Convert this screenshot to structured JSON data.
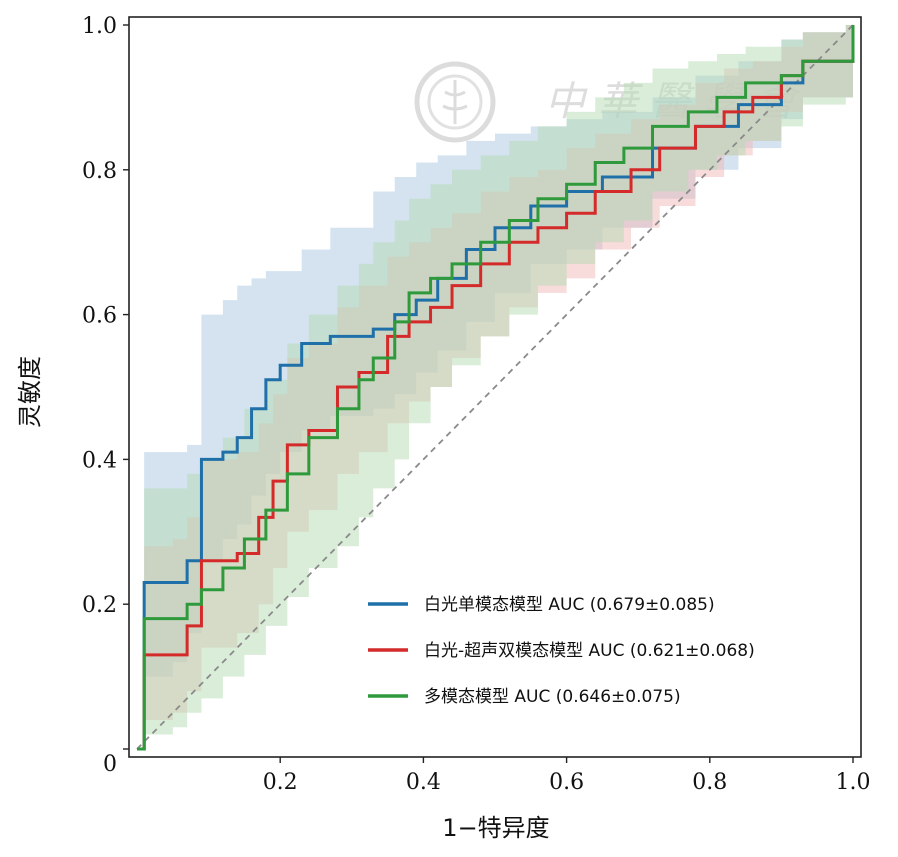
{
  "chart_data": {
    "type": "line",
    "xlabel": "1−特异度",
    "ylabel": "灵敏度",
    "xlim": [
      0,
      1
    ],
    "ylim": [
      0,
      1
    ],
    "x_ticks": [
      {
        "value": 0.2,
        "label": "0.2"
      },
      {
        "value": 0.4,
        "label": "0.4"
      },
      {
        "value": 0.6,
        "label": "0.6"
      },
      {
        "value": 0.8,
        "label": "0.8"
      },
      {
        "value": 1.0,
        "label": "1.0"
      }
    ],
    "y_ticks": [
      {
        "value": 0,
        "label": "0"
      },
      {
        "value": 0.2,
        "label": "0.2"
      },
      {
        "value": 0.4,
        "label": "0.4"
      },
      {
        "value": 0.6,
        "label": "0.6"
      },
      {
        "value": 0.8,
        "label": "0.8"
      },
      {
        "value": 1.0,
        "label": "1.0"
      }
    ],
    "grid": false,
    "legend_position": "bottom-right",
    "diagonal_reference": true,
    "series": [
      {
        "name": "白光单模态模型 AUC (0.679±0.085)",
        "color": "#1f6fa8",
        "band_color": "#a9c8e0",
        "x": [
          0,
          0.01,
          0.05,
          0.07,
          0.09,
          0.12,
          0.14,
          0.16,
          0.18,
          0.2,
          0.23,
          0.27,
          0.33,
          0.36,
          0.39,
          0.42,
          0.46,
          0.5,
          0.55,
          0.6,
          0.65,
          0.72,
          0.78,
          0.84,
          0.9,
          0.93,
          0.99,
          1.0
        ],
        "y": [
          0,
          0.23,
          0.23,
          0.26,
          0.4,
          0.41,
          0.43,
          0.47,
          0.51,
          0.53,
          0.56,
          0.57,
          0.58,
          0.6,
          0.62,
          0.65,
          0.69,
          0.72,
          0.75,
          0.77,
          0.79,
          0.83,
          0.86,
          0.89,
          0.92,
          0.95,
          0.95,
          1.0
        ],
        "lower": [
          0,
          0.1,
          0.12,
          0.16,
          0.26,
          0.29,
          0.31,
          0.35,
          0.38,
          0.41,
          0.44,
          0.46,
          0.47,
          0.49,
          0.52,
          0.55,
          0.59,
          0.63,
          0.67,
          0.69,
          0.72,
          0.76,
          0.8,
          0.83,
          0.87,
          0.9,
          0.9,
          1.0
        ],
        "upper": [
          0,
          0.41,
          0.41,
          0.42,
          0.6,
          0.62,
          0.64,
          0.65,
          0.66,
          0.66,
          0.69,
          0.72,
          0.77,
          0.79,
          0.81,
          0.82,
          0.84,
          0.85,
          0.86,
          0.87,
          0.88,
          0.9,
          0.93,
          0.95,
          0.98,
          0.99,
          1.0,
          1.0
        ]
      },
      {
        "name": "白光-超声双模态模型 AUC (0.621±0.068)",
        "color": "#d42a2a",
        "band_color": "#f2b8b8",
        "x": [
          0,
          0.01,
          0.05,
          0.07,
          0.09,
          0.14,
          0.17,
          0.19,
          0.21,
          0.24,
          0.28,
          0.31,
          0.35,
          0.38,
          0.41,
          0.44,
          0.48,
          0.52,
          0.56,
          0.6,
          0.64,
          0.69,
          0.73,
          0.78,
          0.82,
          0.86,
          0.9,
          0.93,
          0.99,
          1.0
        ],
        "y": [
          0,
          0.13,
          0.13,
          0.17,
          0.26,
          0.27,
          0.32,
          0.37,
          0.42,
          0.44,
          0.5,
          0.52,
          0.57,
          0.59,
          0.61,
          0.64,
          0.67,
          0.7,
          0.72,
          0.74,
          0.77,
          0.8,
          0.83,
          0.86,
          0.88,
          0.9,
          0.93,
          0.95,
          0.95,
          1.0
        ],
        "lower": [
          0,
          0.04,
          0.05,
          0.08,
          0.14,
          0.16,
          0.2,
          0.25,
          0.3,
          0.33,
          0.38,
          0.41,
          0.45,
          0.48,
          0.5,
          0.54,
          0.57,
          0.61,
          0.63,
          0.65,
          0.69,
          0.72,
          0.75,
          0.79,
          0.82,
          0.84,
          0.88,
          0.9,
          0.9,
          1.0
        ],
        "upper": [
          0,
          0.28,
          0.29,
          0.32,
          0.4,
          0.41,
          0.45,
          0.49,
          0.54,
          0.56,
          0.61,
          0.64,
          0.68,
          0.7,
          0.72,
          0.74,
          0.77,
          0.79,
          0.8,
          0.83,
          0.85,
          0.87,
          0.89,
          0.92,
          0.94,
          0.95,
          0.97,
          0.99,
          1.0,
          1.0
        ]
      },
      {
        "name": "多模态模型 AUC (0.646±0.075)",
        "color": "#2f9a3c",
        "band_color": "#b3dcb3",
        "x": [
          0,
          0.01,
          0.05,
          0.07,
          0.09,
          0.12,
          0.15,
          0.18,
          0.21,
          0.24,
          0.28,
          0.31,
          0.33,
          0.36,
          0.38,
          0.41,
          0.44,
          0.48,
          0.52,
          0.56,
          0.6,
          0.64,
          0.68,
          0.72,
          0.77,
          0.81,
          0.85,
          0.9,
          0.93,
          0.99,
          1.0
        ],
        "y": [
          0,
          0.18,
          0.18,
          0.2,
          0.22,
          0.25,
          0.29,
          0.33,
          0.38,
          0.43,
          0.47,
          0.51,
          0.54,
          0.59,
          0.63,
          0.65,
          0.67,
          0.7,
          0.73,
          0.76,
          0.78,
          0.81,
          0.83,
          0.86,
          0.88,
          0.9,
          0.92,
          0.93,
          0.95,
          0.95,
          1.0
        ],
        "lower": [
          0,
          0.02,
          0.03,
          0.05,
          0.07,
          0.1,
          0.13,
          0.17,
          0.21,
          0.25,
          0.28,
          0.32,
          0.36,
          0.4,
          0.45,
          0.5,
          0.53,
          0.57,
          0.6,
          0.64,
          0.67,
          0.7,
          0.73,
          0.77,
          0.8,
          0.82,
          0.84,
          0.86,
          0.89,
          0.9,
          1.0
        ],
        "upper": [
          0,
          0.36,
          0.36,
          0.38,
          0.4,
          0.43,
          0.47,
          0.51,
          0.56,
          0.6,
          0.64,
          0.67,
          0.7,
          0.73,
          0.76,
          0.78,
          0.8,
          0.82,
          0.84,
          0.86,
          0.88,
          0.9,
          0.92,
          0.94,
          0.95,
          0.96,
          0.97,
          0.98,
          0.99,
          1.0,
          1.0
        ]
      }
    ]
  },
  "watermark": {
    "text": "中 華 醫 學 會"
  }
}
